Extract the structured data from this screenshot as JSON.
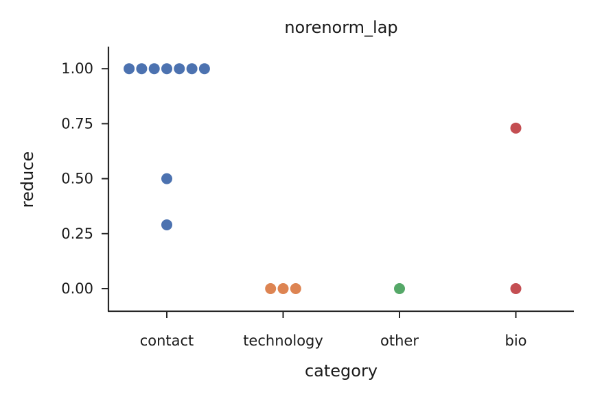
{
  "chart_data": {
    "type": "scatter",
    "subtype": "swarm",
    "title": "norenorm_lap",
    "xlabel": "category",
    "ylabel": "reduce",
    "categories": [
      "contact",
      "technology",
      "other",
      "bio"
    ],
    "ylim": [
      -0.1,
      1.1
    ],
    "yticks": [
      "0.00",
      "0.25",
      "0.50",
      "0.75",
      "1.00"
    ],
    "grid": false,
    "colors": [
      "#4c72b0",
      "#dd8452",
      "#55a868",
      "#c44e52"
    ],
    "series": [
      {
        "category": "contact",
        "values": [
          1.0,
          1.0,
          1.0,
          1.0,
          1.0,
          1.0,
          1.0,
          0.5,
          0.29
        ]
      },
      {
        "category": "technology",
        "values": [
          0.0,
          0.0,
          0.0
        ]
      },
      {
        "category": "other",
        "values": [
          0.0
        ]
      },
      {
        "category": "bio",
        "values": [
          0.73,
          0.0
        ]
      }
    ]
  }
}
